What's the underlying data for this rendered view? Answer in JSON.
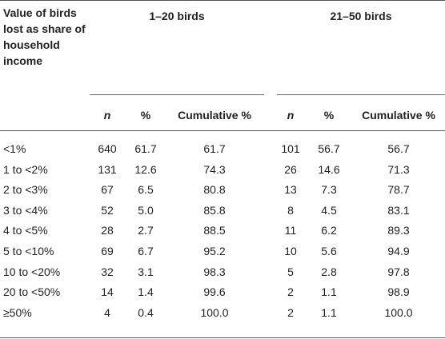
{
  "table": {
    "stub_header": "Value of birds lost as share of household income",
    "groups": [
      "1–20 birds",
      "21–50 birds"
    ],
    "columns": [
      "n",
      "%",
      "Cumulative %",
      "n",
      "%",
      "Cumulative %"
    ],
    "rows": [
      {
        "label": "<1%",
        "cells": [
          "640",
          "61.7",
          "61.7",
          "101",
          "56.7",
          "56.7"
        ]
      },
      {
        "label": "1 to <2%",
        "cells": [
          "131",
          "12.6",
          "74.3",
          "26",
          "14.6",
          "71.3"
        ]
      },
      {
        "label": "2 to <3%",
        "cells": [
          "67",
          "6.5",
          "80.8",
          "13",
          "7.3",
          "78.7"
        ]
      },
      {
        "label": "3 to <4%",
        "cells": [
          "52",
          "5.0",
          "85.8",
          "8",
          "4.5",
          "83.1"
        ]
      },
      {
        "label": "4 to <5%",
        "cells": [
          "28",
          "2.7",
          "88.5",
          "11",
          "6.2",
          "89.3"
        ]
      },
      {
        "label": "5 to <10%",
        "cells": [
          "69",
          "6.7",
          "95.2",
          "10",
          "5.6",
          "94.9"
        ]
      },
      {
        "label": "10 to <20%",
        "cells": [
          "32",
          "3.1",
          "98.3",
          "5",
          "2.8",
          "97.8"
        ]
      },
      {
        "label": "20 to <50%",
        "cells": [
          "14",
          "1.4",
          "99.6",
          "2",
          "1.1",
          "98.9"
        ]
      },
      {
        "label": "≥50%",
        "cells": [
          "4",
          "0.4",
          "100.0",
          "2",
          "1.1",
          "100.0"
        ]
      }
    ]
  }
}
